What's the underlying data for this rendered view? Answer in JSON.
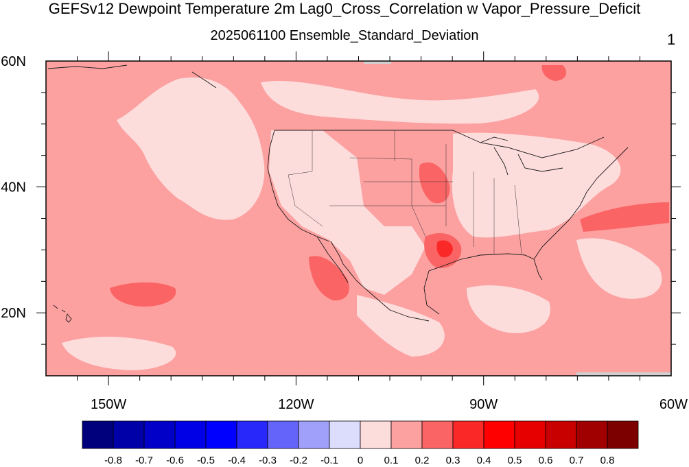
{
  "title": "GEFSv12 Dewpoint Temperature 2m Lag0_Cross_Correlation w Vapor_Pressure_Deficit",
  "subtitle": "2025061100 Ensemble_Standard_Deviation",
  "panel_label": "1",
  "map": {
    "projection": "cylindrical-equidistant",
    "lon_range": [
      -160,
      -60
    ],
    "lat_range": [
      10,
      60
    ],
    "lat_labels": [
      {
        "lat": 60,
        "label": "60N"
      },
      {
        "lat": 40,
        "label": "40N"
      },
      {
        "lat": 20,
        "label": "20N"
      }
    ],
    "lon_labels": [
      {
        "lon": -150,
        "label": "150W"
      },
      {
        "lon": -120,
        "label": "120W"
      },
      {
        "lon": -90,
        "label": "90W"
      },
      {
        "lon": -60,
        "label": "60W"
      }
    ],
    "background_fill": "#fca0a0",
    "field_colors": {
      "0-0.1": "#fddcdc",
      "0.1-0.2": "#fca0a0",
      "0.2-0.3": "#fb6464",
      "0.3-0.4": "#fb2828"
    }
  },
  "colorbar": {
    "labels": [
      "-0.8",
      "-0.7",
      "-0.6",
      "-0.5",
      "-0.4",
      "-0.3",
      "-0.2",
      "-0.1",
      "0",
      "0.1",
      "0.2",
      "0.3",
      "0.4",
      "0.5",
      "0.6",
      "0.7",
      "0.8"
    ],
    "colors": [
      "#00007d",
      "#0000a8",
      "#0000c8",
      "#0000e6",
      "#0000ff",
      "#2828fb",
      "#6464fb",
      "#a0a0fb",
      "#dcdcfd",
      "#fddcdc",
      "#fca0a0",
      "#fb6464",
      "#fb2828",
      "#ff0000",
      "#e60000",
      "#c80000",
      "#a00000",
      "#7d0000"
    ]
  }
}
